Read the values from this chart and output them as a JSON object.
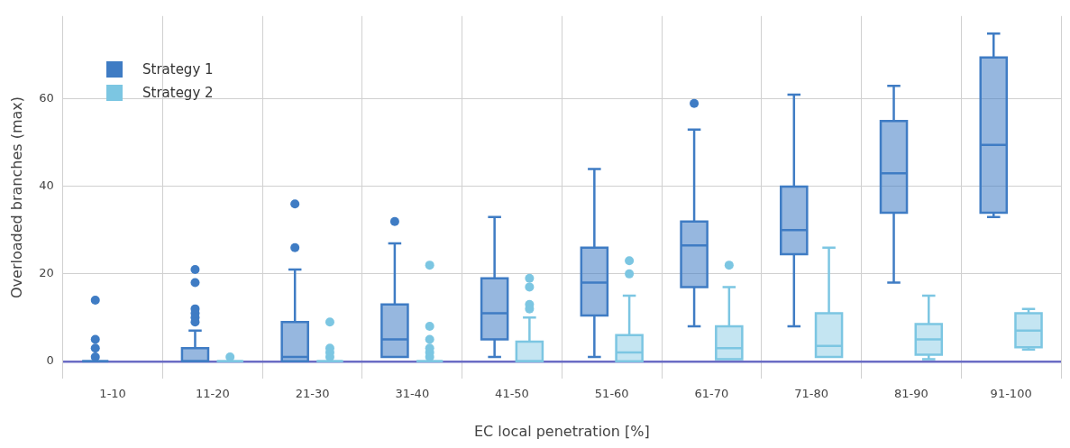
{
  "chart_data": {
    "type": "box",
    "xlabel": "EC local penetration [%]",
    "ylabel": "Overloaded branches (max)",
    "categories": [
      "1-10",
      "11-20",
      "21-30",
      "31-40",
      "41-50",
      "51-60",
      "61-70",
      "71-80",
      "81-90",
      "91-100"
    ],
    "ylim": [
      -4,
      79
    ],
    "yticks": [
      0,
      20,
      40,
      60
    ],
    "grid": true,
    "legend": "top left",
    "series": [
      {
        "name": "Strategy 1",
        "color": "#3f7cc4",
        "boxes": [
          {
            "low": 0,
            "q1": 0,
            "median": 0,
            "q3": 0,
            "high": 0,
            "outliers": [
              14,
              5,
              3,
              1
            ]
          },
          {
            "low": 0,
            "q1": 0,
            "median": 0,
            "q3": 3,
            "high": 7,
            "outliers": [
              21,
              18,
              12,
              11,
              10,
              9
            ]
          },
          {
            "low": 0,
            "q1": 0,
            "median": 1,
            "q3": 9,
            "high": 21,
            "outliers": [
              36,
              26
            ]
          },
          {
            "low": 1,
            "q1": 1,
            "median": 5,
            "q3": 13,
            "high": 27,
            "outliers": [
              32
            ]
          },
          {
            "low": 1,
            "q1": 5,
            "median": 11,
            "q3": 19,
            "high": 33
          },
          {
            "low": 1,
            "q1": 10.5,
            "median": 18,
            "q3": 26,
            "high": 44
          },
          {
            "low": 8,
            "q1": 17,
            "median": 26.5,
            "q3": 32,
            "high": 53,
            "outliers": [
              59
            ]
          },
          {
            "low": 8,
            "q1": 24.5,
            "median": 30,
            "q3": 40,
            "high": 61
          },
          {
            "low": 18,
            "q1": 34,
            "median": 43,
            "q3": 55,
            "high": 63
          },
          {
            "low": 33,
            "q1": 34,
            "median": 49.5,
            "q3": 69.5,
            "high": 75
          }
        ]
      },
      {
        "name": "Strategy 2",
        "color": "#7cc6e2",
        "boxes": [
          null,
          {
            "low": 0,
            "q1": 0,
            "median": 0,
            "q3": 0,
            "high": 0,
            "outliers": [
              1
            ]
          },
          {
            "low": 0,
            "q1": 0,
            "median": 0,
            "q3": 0,
            "high": 0,
            "outliers": [
              9,
              3,
              2,
              1
            ]
          },
          {
            "low": 0,
            "q1": 0,
            "median": 0,
            "q3": 0,
            "high": 0,
            "outliers": [
              22,
              8,
              5,
              3,
              2,
              1
            ]
          },
          {
            "low": 0,
            "q1": 0,
            "median": 0,
            "q3": 4.5,
            "high": 10,
            "outliers": [
              19,
              17,
              13,
              12
            ]
          },
          {
            "low": 0,
            "q1": 0,
            "median": 2,
            "q3": 6,
            "high": 15,
            "outliers": [
              23,
              20
            ]
          },
          {
            "low": 0.5,
            "q1": 0.5,
            "median": 3,
            "q3": 8,
            "high": 17,
            "outliers": [
              22
            ]
          },
          {
            "low": 1,
            "q1": 1,
            "median": 3.5,
            "q3": 11,
            "high": 26
          },
          {
            "low": 0.5,
            "q1": 1.5,
            "median": 5,
            "q3": 8.5,
            "high": 15
          },
          {
            "low": 2.7,
            "q1": 3.2,
            "median": 7,
            "q3": 11,
            "high": 12
          }
        ]
      }
    ]
  }
}
